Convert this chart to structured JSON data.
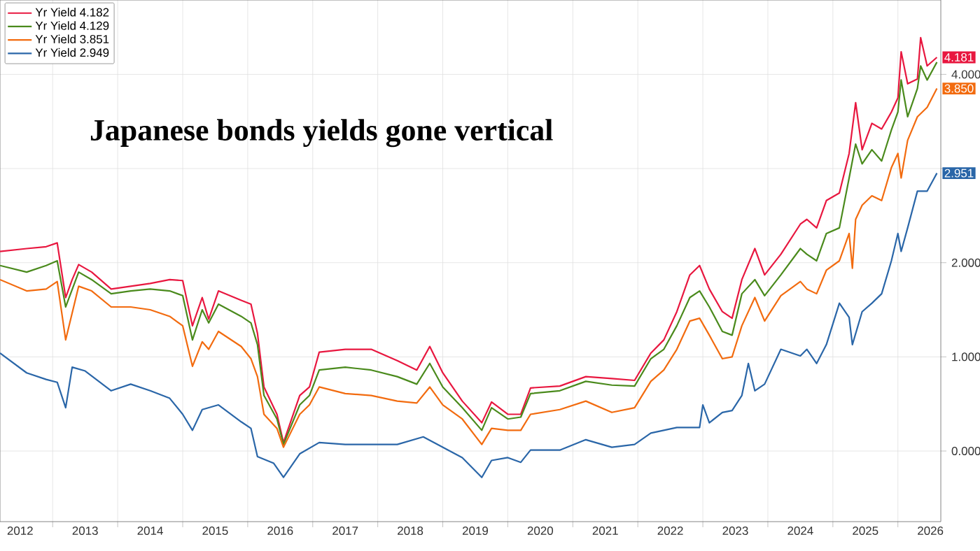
{
  "chart_data": {
    "type": "line",
    "title": "Japanese bonds yields gone vertical",
    "xlim": [
      2012.19,
      2026.66
    ],
    "ylim": [
      -0.75,
      4.79
    ],
    "xticks": [
      {
        "value": 2012.5,
        "label": "2012"
      },
      {
        "value": 2013,
        "label": null
      },
      {
        "value": 2013.5,
        "label": "2013"
      },
      {
        "value": 2014,
        "label": null
      },
      {
        "value": 2014.5,
        "label": "2014"
      },
      {
        "value": 2015,
        "label": null
      },
      {
        "value": 2015.5,
        "label": "2015"
      },
      {
        "value": 2016,
        "label": null
      },
      {
        "value": 2016.5,
        "label": "2016"
      },
      {
        "value": 2017,
        "label": null
      },
      {
        "value": 2017.5,
        "label": "2017"
      },
      {
        "value": 2018,
        "label": null
      },
      {
        "value": 2018.5,
        "label": "2018"
      },
      {
        "value": 2019,
        "label": null
      },
      {
        "value": 2019.5,
        "label": "2019"
      },
      {
        "value": 2020,
        "label": null
      },
      {
        "value": 2020.5,
        "label": "2020"
      },
      {
        "value": 2021,
        "label": null
      },
      {
        "value": 2021.5,
        "label": "2021"
      },
      {
        "value": 2022,
        "label": null
      },
      {
        "value": 2022.5,
        "label": "2022"
      },
      {
        "value": 2023,
        "label": null
      },
      {
        "value": 2023.5,
        "label": "2023"
      },
      {
        "value": 2024,
        "label": null
      },
      {
        "value": 2024.5,
        "label": "2024"
      },
      {
        "value": 2025,
        "label": null
      },
      {
        "value": 2025.5,
        "label": "2025"
      },
      {
        "value": 2026,
        "label": null
      },
      {
        "value": 2026.5,
        "label": "2026"
      }
    ],
    "yticks": [
      {
        "value": 0,
        "label": "0.000"
      },
      {
        "value": 1,
        "label": "1.000"
      },
      {
        "value": 2,
        "label": "2.000"
      },
      {
        "value": 3,
        "label": null
      },
      {
        "value": 4,
        "label": "4.000"
      }
    ],
    "grid": true,
    "legend": "top left",
    "marker": "none",
    "line_style": "solid",
    "series": [
      {
        "name": "Yr Yield 4.182",
        "color": "#e8173f",
        "x": [
          2012.19,
          2012.6,
          2012.9,
          2013.07,
          2013.2,
          2013.3,
          2013.4,
          2013.6,
          2013.9,
          2014.2,
          2014.5,
          2014.8,
          2015.0,
          2015.15,
          2015.3,
          2015.4,
          2015.55,
          2015.9,
          2016.05,
          2016.15,
          2016.25,
          2016.45,
          2016.55,
          2016.8,
          2016.95,
          2017.1,
          2017.5,
          2017.9,
          2018.3,
          2018.6,
          2018.8,
          2019.0,
          2019.3,
          2019.6,
          2019.75,
          2020.0,
          2020.2,
          2020.35,
          2020.8,
          2021.2,
          2021.6,
          2021.95,
          2022.2,
          2022.4,
          2022.6,
          2022.8,
          2022.95,
          2023.1,
          2023.3,
          2023.45,
          2023.6,
          2023.8,
          2023.95,
          2024.2,
          2024.5,
          2024.6,
          2024.75,
          2024.9,
          2025.1,
          2025.25,
          2025.35,
          2025.45,
          2025.6,
          2025.75,
          2025.9,
          2026.0,
          2026.05,
          2026.15,
          2026.3,
          2026.35,
          2026.45,
          2026.6
        ],
        "values": [
          2.12,
          2.15,
          2.17,
          2.21,
          1.63,
          1.82,
          1.98,
          1.9,
          1.72,
          1.75,
          1.78,
          1.82,
          1.81,
          1.33,
          1.63,
          1.4,
          1.7,
          1.6,
          1.56,
          1.25,
          0.68,
          0.39,
          0.09,
          0.59,
          0.68,
          1.05,
          1.08,
          1.08,
          0.96,
          0.86,
          1.11,
          0.83,
          0.53,
          0.3,
          0.52,
          0.39,
          0.39,
          0.67,
          0.69,
          0.79,
          0.77,
          0.75,
          1.04,
          1.18,
          1.48,
          1.87,
          1.97,
          1.72,
          1.48,
          1.41,
          1.82,
          2.15,
          1.87,
          2.09,
          2.41,
          2.46,
          2.37,
          2.66,
          2.74,
          3.16,
          3.7,
          3.2,
          3.48,
          3.42,
          3.6,
          3.75,
          4.24,
          3.9,
          3.95,
          4.39,
          4.09,
          4.181
        ],
        "value_labels": [
          null,
          null,
          null,
          null,
          null,
          null,
          null,
          null,
          null,
          null,
          null,
          null,
          null,
          null,
          null,
          null,
          null,
          null,
          null,
          null,
          null,
          null,
          null,
          null,
          null,
          null,
          null,
          null,
          null,
          null,
          null,
          null,
          null,
          null,
          null,
          null,
          null,
          null,
          null,
          null,
          null,
          null,
          null,
          null,
          null,
          null,
          null,
          null,
          null,
          null,
          null,
          null,
          null,
          null,
          null,
          null,
          null,
          null,
          null,
          null,
          null,
          null,
          null,
          null,
          null,
          null,
          null,
          null,
          null,
          null,
          null,
          "4.181"
        ]
      },
      {
        "name": "Yr Yield 4.129",
        "color": "#4a8a1c",
        "x": [
          2012.19,
          2012.6,
          2012.9,
          2013.07,
          2013.2,
          2013.4,
          2013.6,
          2013.9,
          2014.2,
          2014.5,
          2014.8,
          2015.0,
          2015.15,
          2015.3,
          2015.4,
          2015.55,
          2015.9,
          2016.05,
          2016.15,
          2016.25,
          2016.45,
          2016.55,
          2016.8,
          2016.95,
          2017.1,
          2017.5,
          2017.9,
          2018.3,
          2018.6,
          2018.8,
          2019.0,
          2019.3,
          2019.6,
          2019.75,
          2020.0,
          2020.2,
          2020.35,
          2020.8,
          2021.2,
          2021.6,
          2021.95,
          2022.2,
          2022.4,
          2022.6,
          2022.8,
          2022.95,
          2023.1,
          2023.3,
          2023.45,
          2023.6,
          2023.8,
          2023.95,
          2024.2,
          2024.5,
          2024.6,
          2024.75,
          2024.9,
          2025.1,
          2025.25,
          2025.35,
          2025.45,
          2025.6,
          2025.75,
          2025.9,
          2026.0,
          2026.05,
          2026.15,
          2026.3,
          2026.35,
          2026.45,
          2026.6
        ],
        "values": [
          1.97,
          1.9,
          1.97,
          2.02,
          1.53,
          1.9,
          1.82,
          1.67,
          1.7,
          1.72,
          1.7,
          1.65,
          1.18,
          1.5,
          1.36,
          1.56,
          1.43,
          1.36,
          1.13,
          0.59,
          0.34,
          0.07,
          0.49,
          0.59,
          0.86,
          0.89,
          0.86,
          0.79,
          0.71,
          0.93,
          0.68,
          0.46,
          0.22,
          0.46,
          0.34,
          0.36,
          0.61,
          0.64,
          0.74,
          0.7,
          0.69,
          0.98,
          1.08,
          1.33,
          1.63,
          1.7,
          1.53,
          1.27,
          1.23,
          1.67,
          1.82,
          1.65,
          1.87,
          2.15,
          2.09,
          2.02,
          2.31,
          2.37,
          2.9,
          3.26,
          3.05,
          3.2,
          3.08,
          3.41,
          3.6,
          3.94,
          3.55,
          3.85,
          4.09,
          3.94,
          4.13
        ]
      },
      {
        "name": "Yr Yield 3.851",
        "color": "#f26b0f",
        "x": [
          2012.19,
          2012.6,
          2012.9,
          2013.07,
          2013.2,
          2013.4,
          2013.6,
          2013.9,
          2014.2,
          2014.5,
          2014.8,
          2015.0,
          2015.15,
          2015.3,
          2015.4,
          2015.55,
          2015.9,
          2016.05,
          2016.15,
          2016.25,
          2016.45,
          2016.55,
          2016.8,
          2016.95,
          2017.1,
          2017.5,
          2017.9,
          2018.3,
          2018.6,
          2018.8,
          2019.0,
          2019.3,
          2019.6,
          2019.75,
          2020.0,
          2020.2,
          2020.35,
          2020.8,
          2021.2,
          2021.6,
          2021.95,
          2022.2,
          2022.4,
          2022.6,
          2022.8,
          2022.95,
          2023.1,
          2023.3,
          2023.45,
          2023.6,
          2023.8,
          2023.95,
          2024.2,
          2024.5,
          2024.6,
          2024.75,
          2024.9,
          2025.1,
          2025.25,
          2025.3,
          2025.35,
          2025.45,
          2025.6,
          2025.75,
          2025.9,
          2026.0,
          2026.05,
          2026.15,
          2026.3,
          2026.45,
          2026.6
        ],
        "values": [
          1.82,
          1.7,
          1.72,
          1.8,
          1.18,
          1.75,
          1.7,
          1.53,
          1.53,
          1.5,
          1.43,
          1.33,
          0.9,
          1.16,
          1.08,
          1.27,
          1.11,
          0.98,
          0.79,
          0.39,
          0.24,
          0.04,
          0.39,
          0.49,
          0.68,
          0.61,
          0.59,
          0.53,
          0.51,
          0.68,
          0.49,
          0.34,
          0.07,
          0.24,
          0.22,
          0.22,
          0.39,
          0.44,
          0.53,
          0.41,
          0.46,
          0.74,
          0.86,
          1.08,
          1.38,
          1.41,
          1.23,
          0.98,
          1.0,
          1.33,
          1.63,
          1.38,
          1.65,
          1.8,
          1.72,
          1.67,
          1.92,
          2.02,
          2.31,
          1.94,
          2.46,
          2.61,
          2.71,
          2.66,
          3.01,
          3.16,
          2.9,
          3.3,
          3.55,
          3.65,
          3.85
        ],
        "value_labels": [
          null,
          null,
          null,
          null,
          null,
          null,
          null,
          null,
          null,
          null,
          null,
          null,
          null,
          null,
          null,
          null,
          null,
          null,
          null,
          null,
          null,
          null,
          null,
          null,
          null,
          null,
          null,
          null,
          null,
          null,
          null,
          null,
          null,
          null,
          null,
          null,
          null,
          null,
          null,
          null,
          null,
          null,
          null,
          null,
          null,
          null,
          null,
          null,
          null,
          null,
          null,
          null,
          null,
          null,
          null,
          null,
          null,
          null,
          null,
          null,
          null,
          null,
          null,
          null,
          null,
          null,
          null,
          null,
          null,
          null,
          "3.850"
        ]
      },
      {
        "name": "Yr Yield 2.949",
        "color": "#2a66a8",
        "x": [
          2012.19,
          2012.6,
          2012.9,
          2013.07,
          2013.2,
          2013.3,
          2013.5,
          2013.9,
          2014.2,
          2014.5,
          2014.8,
          2015.0,
          2015.15,
          2015.3,
          2015.55,
          2015.9,
          2016.05,
          2016.15,
          2016.4,
          2016.55,
          2016.8,
          2017.1,
          2017.5,
          2017.9,
          2018.3,
          2018.7,
          2019.0,
          2019.3,
          2019.6,
          2019.75,
          2020.0,
          2020.2,
          2020.35,
          2020.8,
          2021.2,
          2021.6,
          2021.95,
          2022.2,
          2022.6,
          2022.95,
          2023.0,
          2023.1,
          2023.3,
          2023.45,
          2023.6,
          2023.7,
          2023.8,
          2023.95,
          2024.2,
          2024.5,
          2024.6,
          2024.75,
          2024.9,
          2025.1,
          2025.25,
          2025.3,
          2025.45,
          2025.6,
          2025.75,
          2025.9,
          2026.0,
          2026.05,
          2026.15,
          2026.3,
          2026.45,
          2026.6
        ],
        "values": [
          1.04,
          0.83,
          0.76,
          0.73,
          0.46,
          0.89,
          0.85,
          0.64,
          0.71,
          0.64,
          0.56,
          0.39,
          0.22,
          0.44,
          0.49,
          0.31,
          0.24,
          -0.06,
          -0.13,
          -0.28,
          -0.03,
          0.09,
          0.07,
          0.07,
          0.07,
          0.15,
          0.04,
          -0.07,
          -0.28,
          -0.1,
          -0.07,
          -0.12,
          0.01,
          0.01,
          0.12,
          0.04,
          0.07,
          0.19,
          0.25,
          0.25,
          0.49,
          0.3,
          0.41,
          0.43,
          0.59,
          0.93,
          0.64,
          0.71,
          1.08,
          1.01,
          1.08,
          0.93,
          1.13,
          1.57,
          1.42,
          1.13,
          1.48,
          1.57,
          1.67,
          2.02,
          2.31,
          2.12,
          2.37,
          2.76,
          2.76,
          2.951
        ],
        "value_labels": [
          null,
          null,
          null,
          null,
          null,
          null,
          null,
          null,
          null,
          null,
          null,
          null,
          null,
          null,
          null,
          null,
          null,
          null,
          null,
          null,
          null,
          null,
          null,
          null,
          null,
          null,
          null,
          null,
          null,
          null,
          null,
          null,
          null,
          null,
          null,
          null,
          null,
          null,
          null,
          null,
          null,
          null,
          null,
          null,
          null,
          null,
          null,
          null,
          null,
          null,
          null,
          null,
          null,
          null,
          null,
          null,
          null,
          null,
          null,
          null,
          null,
          null,
          null,
          null,
          null,
          "2.951"
        ]
      }
    ]
  }
}
